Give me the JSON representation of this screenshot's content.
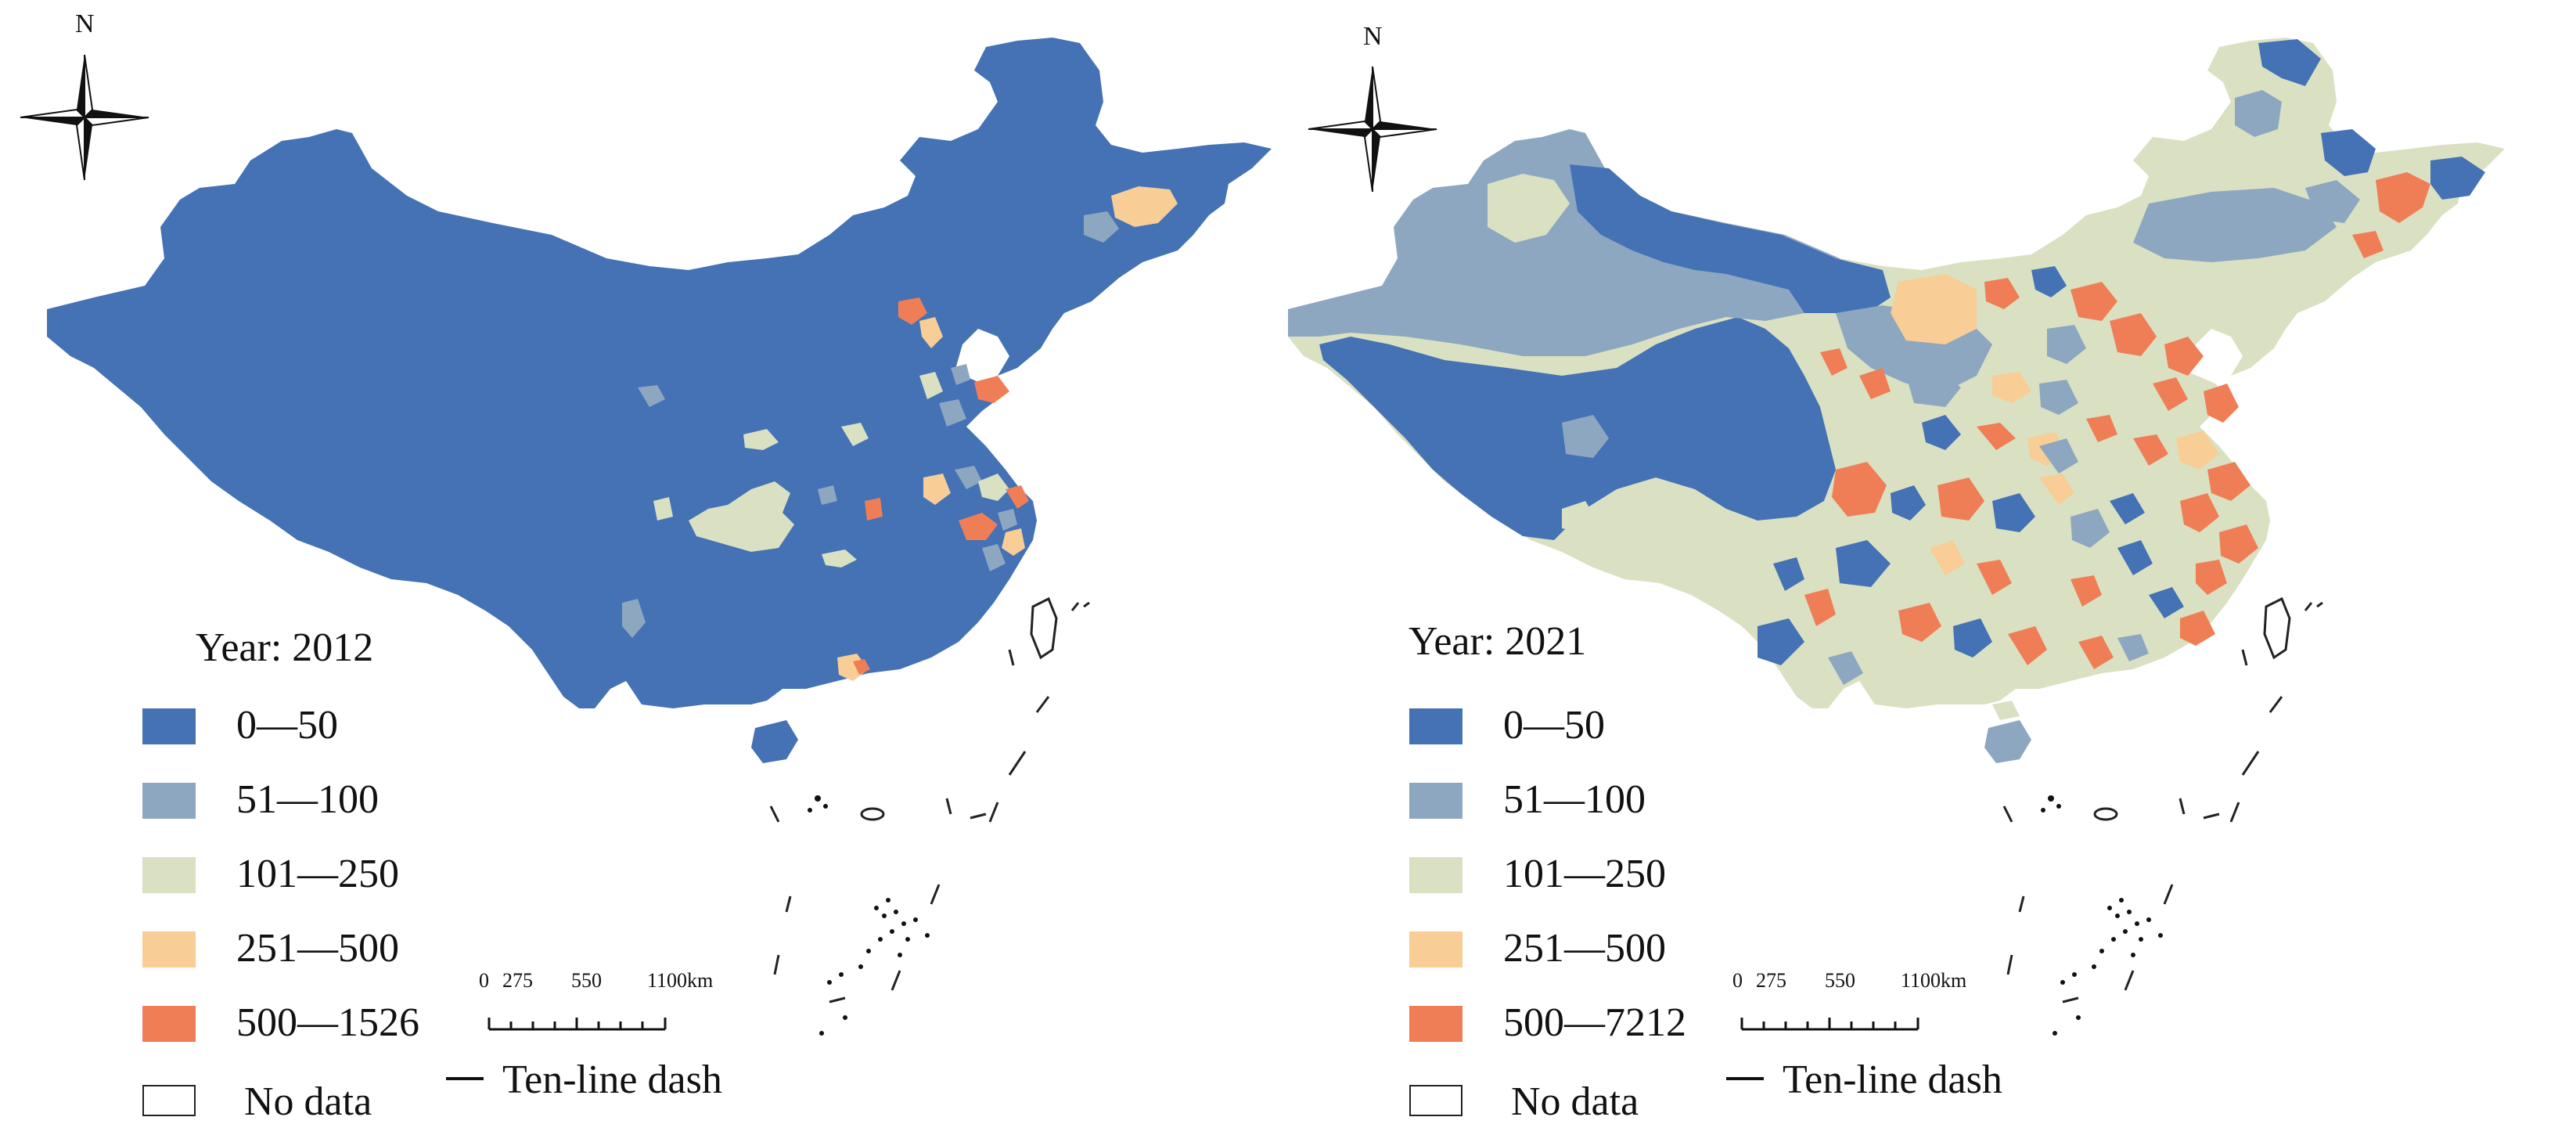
{
  "colors": {
    "c0": "#4472b5",
    "c1": "#8ea7c1",
    "c2": "#d9e1c2",
    "c3": "#f8cd96",
    "c4": "#ef7e56",
    "nodata": "#ffffff"
  },
  "north_label": "N",
  "scale_ticks": [
    "0",
    "275",
    "550",
    "1100km"
  ],
  "dash_label": "Ten-line dash",
  "panels": [
    {
      "year_label": "Year: 2012",
      "legend": [
        {
          "label": "0—50",
          "color": "#4472b5"
        },
        {
          "label": "51—100",
          "color": "#8ea7c1"
        },
        {
          "label": "101—250",
          "color": "#d9e1c2"
        },
        {
          "label": "251—500",
          "color": "#f8cd96"
        },
        {
          "label": "500—1526",
          "color": "#ef7e56"
        },
        {
          "label": "No data",
          "color": "#ffffff"
        }
      ]
    },
    {
      "year_label": "Year: 2021",
      "legend": [
        {
          "label": "0—50",
          "color": "#4472b5"
        },
        {
          "label": "51—100",
          "color": "#8ea7c1"
        },
        {
          "label": "101—250",
          "color": "#d9e1c2"
        },
        {
          "label": "251—500",
          "color": "#f8cd96"
        },
        {
          "label": "500—7212",
          "color": "#ef7e56"
        },
        {
          "label": "No data",
          "color": "#ffffff"
        }
      ]
    }
  ]
}
